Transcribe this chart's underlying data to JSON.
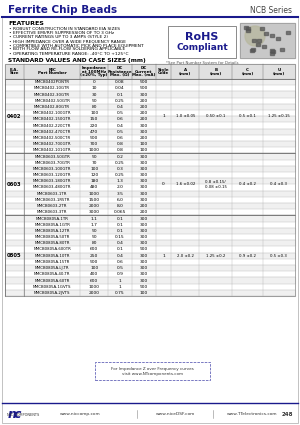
{
  "title": "Ferrite Chip Beads",
  "series": "NCB Series",
  "bg_color": "#ffffff",
  "header_color": "#1a1a8c",
  "features_title": "FEATURES",
  "features": [
    "ROBUST CONSTRUCTION IN STANDARD EIA SIZES",
    "EFFECTIVE EMI/RFI SUPPRESSION OF TO 3 GHz",
    "CURRENT RATINGS UP TO 3 AMPS (STYLE 2)",
    "HIGH IMPEDANCE OVER A WIDE FREQUENCY RANGE",
    "COMPATIBLE WITH AUTOMATIC PICK AND PLACE EQUIPMENT",
    "BOTH FLOW AND RE-FLOW SOLDERING APPLICABLE",
    "OPERATING TEMPERATURE RANGE: -40°C TO +125°C"
  ],
  "table_title": "STANDARD VALUES AND CASE SIZES (mm)",
  "col_headers": [
    "E.A.\nSize",
    "NIC\nPart Number",
    "Impedance\nat 100MHz\n(±20%, Typ)",
    "DC\nResistance\nMax. (Ω)",
    "DC\nCurrent\nMax. (mA)",
    "Style\nCode",
    "A\n(mm)",
    "B\n(mm)",
    "C\n(mm)",
    "U\n(mm)"
  ],
  "rows_0402": [
    [
      "NMCB0402PONTR",
      "0",
      "0.08",
      "500"
    ],
    [
      "NMCB0402-10GTR",
      "10",
      "0.04",
      "500"
    ],
    [
      "NMCB0402-30GTR",
      "30",
      "0.1",
      "300"
    ],
    [
      "NMCB0402-50GTR",
      "50",
      "0.25",
      "200"
    ],
    [
      "NMCB0402-80GTR",
      "80",
      "0.4",
      "200"
    ],
    [
      "NMCB0402-100GTR",
      "100",
      "0.5",
      "200"
    ],
    [
      "NMCB0402-150GTR",
      "150",
      "0.6",
      "200"
    ],
    [
      "NMCB0402-220CTR",
      "220",
      "0.4",
      "300"
    ],
    [
      "NMCB0402-470CTR",
      "470",
      "0.5",
      "300"
    ],
    [
      "NMCB0402-500CTR",
      "500",
      "0.6",
      "200"
    ],
    [
      "NMCB0402-700GTR",
      "700",
      "0.8",
      "100"
    ],
    [
      "NMCB0402-101GTR",
      "1000",
      "0.8",
      "100"
    ]
  ],
  "row_0402_dim": [
    "1",
    "1.0 ±0.05",
    "0.50 ±0.1",
    "0.5 ±0.1",
    "1.25 ±0.15"
  ],
  "rows_0603": [
    [
      "NMCB0603-50GTR",
      "50",
      "0.2",
      "300"
    ],
    [
      "NMCB0603-70GTR",
      "70",
      "0.25",
      "300"
    ],
    [
      "NMCB0603-100GTR",
      "100",
      "0.3",
      "300"
    ],
    [
      "NMCB0603-120GTR",
      "120",
      "0.25",
      "300"
    ],
    [
      "NMCB0603-180GTR",
      "180",
      "1.3",
      "300"
    ],
    [
      "NMCB0603-480GTR",
      "480",
      "2.0",
      "300"
    ],
    [
      "NMCB0603-1TR",
      "1000",
      "3.5",
      "300"
    ],
    [
      "NMCB0603-1R5TR",
      "1500",
      "6.0",
      "300"
    ],
    [
      "NMCB0603-2TR",
      "2000",
      "8.0",
      "200"
    ],
    [
      "NMCB0603-3TR",
      "3000",
      "0.065",
      "200"
    ]
  ],
  "row_0603_dim": [
    "0",
    "1.6 ±0.02",
    "0.8 ±0.15/\n0.08 ±0.15",
    "0.4 ±0.2",
    "0.4 ±0.3"
  ],
  "rows_0805": [
    [
      "NMCB0805A-1TR",
      "1.1",
      "0.1",
      "300"
    ],
    [
      "NMCB0805A-1GTR",
      "1.7",
      "0.1",
      "300"
    ],
    [
      "NMCB0805A-12TR",
      "50",
      "0.1",
      "300"
    ],
    [
      "NMCB0805A-50TR",
      "50",
      "0.15",
      "300"
    ],
    [
      "NMCB0805A-80TR",
      "80",
      "0.4",
      "300"
    ],
    [
      "NMCB0805A-600TR",
      "600",
      "0.1",
      "900"
    ],
    [
      "NMCB0805A-10TR",
      "250",
      "0.4",
      "300"
    ],
    [
      "NMCB0805A-15TR",
      "500",
      "0.6",
      "300"
    ],
    [
      "NMCB0805A-LJ-TR",
      "100",
      "0.5",
      "300"
    ],
    [
      "NMCB0805A-40-TR",
      "400",
      "0.9",
      "300"
    ],
    [
      "NMCB0805A-60TR",
      "600",
      "1",
      "300"
    ],
    [
      "NMCB0805A-1GVTS",
      "1000",
      "1",
      "900"
    ],
    [
      "NMCB0805A-2JVTS",
      "2000",
      "0.75",
      "100"
    ]
  ],
  "row_0805_dim": [
    "1",
    "2.0 ±0.2",
    "1.25 ±0.2",
    "0.9 ±0.2",
    "0.5 ±0.3"
  ],
  "footer_note": "For Impedance Z over Frequency curves\nvisit www.NTcomponents.com",
  "footer_url1": "www.niccomp.com",
  "footer_url2": "www.niceDSF.com",
  "footer_url3": "www.TTelectronics.com",
  "page_num": "248",
  "rohs_note": "*See Part Number System for Details"
}
